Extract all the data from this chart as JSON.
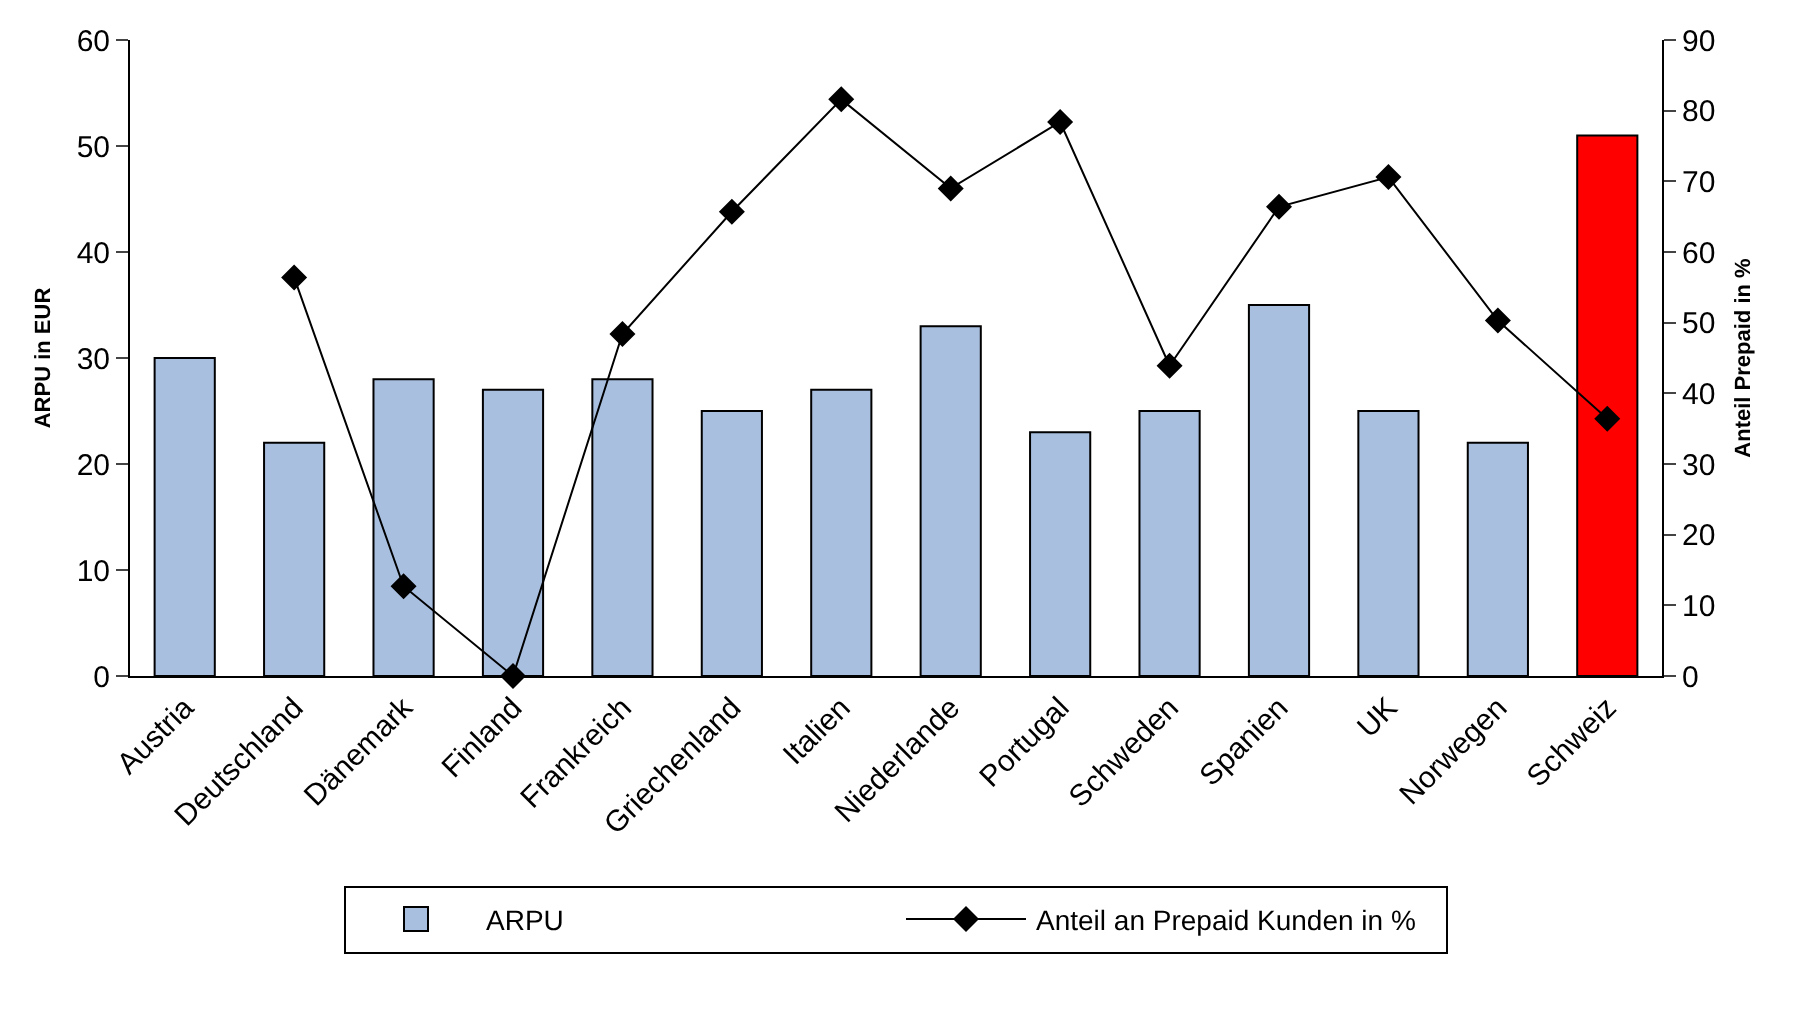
{
  "chart_data": {
    "type": "bar",
    "categories": [
      "Austria",
      "Deutschland",
      "Dänemark",
      "Finland",
      "Frankreich",
      "Griechenland",
      "Italien",
      "Niederlande",
      "Portugal",
      "Schweden",
      "Spanien",
      "UK",
      "Norwegen",
      "Schweiz"
    ],
    "ylabel": "ARPU in EUR",
    "y2label": "Anteil Prepaid in %",
    "ylim": [
      0,
      60
    ],
    "yticks": [
      0,
      10,
      20,
      30,
      40,
      50,
      60
    ],
    "y2lim": [
      0,
      90
    ],
    "y2ticks": [
      0,
      10,
      20,
      30,
      40,
      50,
      60,
      70,
      80,
      90
    ],
    "legend": "bottom",
    "series": [
      {
        "name": "ARPU",
        "color": "#a9bfe0",
        "colors": [
          "#a9bfe0",
          "#a9bfe0",
          "#a9bfe0",
          "#a9bfe0",
          "#a9bfe0",
          "#a9bfe0",
          "#a9bfe0",
          "#a9bfe0",
          "#a9bfe0",
          "#a9bfe0",
          "#a9bfe0",
          "#a9bfe0",
          "#a9bfe0",
          "#ff0000"
        ],
        "values": [
          30,
          22,
          28,
          27,
          28,
          25,
          27,
          33,
          23,
          25,
          35,
          25,
          22,
          51
        ]
      },
      {
        "name": "Anteil an Prepaid Kunden in %",
        "type": "line",
        "axis": "y2",
        "color": "#000000",
        "marker": "diamond",
        "line_style": "solid",
        "values": [
          null,
          56.4,
          12.7,
          0,
          48.4,
          65.7,
          81.6,
          69,
          78.4,
          43.9,
          66.4,
          70.6,
          50.3,
          36.4
        ]
      }
    ]
  }
}
